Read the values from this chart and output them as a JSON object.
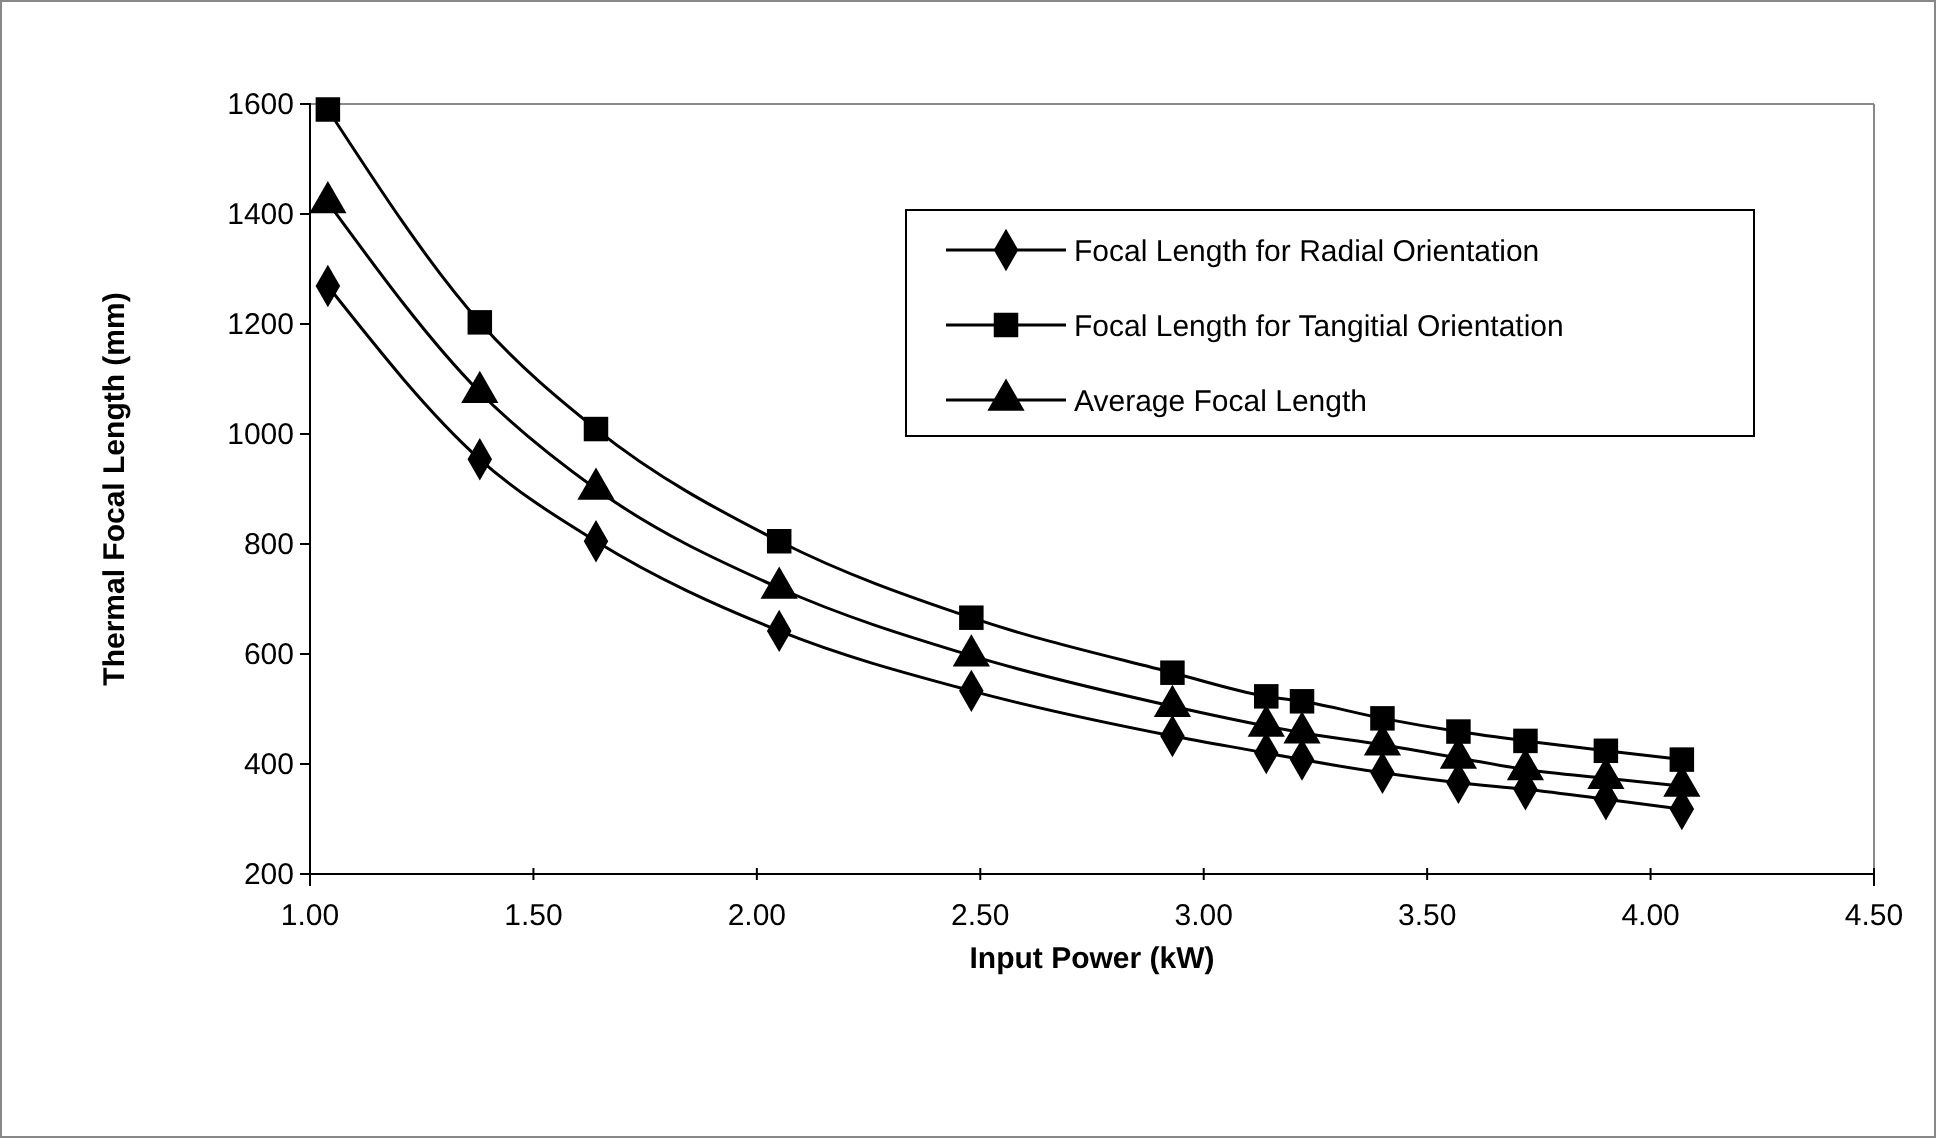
{
  "chart_data": {
    "type": "line",
    "xlabel": "Input Power (kW)",
    "ylabel": "Thermal Focal Length (mm)",
    "x": [
      1.04,
      1.38,
      1.64,
      2.05,
      2.48,
      2.93,
      3.14,
      3.22,
      3.4,
      3.57,
      3.72,
      3.9,
      4.07
    ],
    "series": [
      {
        "name": "Focal Length for Radial Orientation",
        "color": "#000000",
        "marker": "diamond",
        "values": [
          1269,
          954,
          805,
          642,
          533,
          451,
          420,
          408,
          384,
          366,
          354,
          336,
          318
        ]
      },
      {
        "name": "Focal Length for Tangitial Orientation",
        "color": "#000000",
        "marker": "square",
        "values": [
          1590,
          1203,
          1009,
          805,
          666,
          566,
          523,
          514,
          483,
          459,
          442,
          424,
          408
        ]
      },
      {
        "name": "Average Focal Length",
        "color": "#000000",
        "marker": "triangle",
        "values": [
          1421,
          1076,
          900,
          720,
          597,
          505,
          469,
          457,
          435,
          411,
          390,
          374,
          360
        ]
      }
    ],
    "xlim": [
      1.0,
      4.5
    ],
    "xticks": [
      {
        "value": 1,
        "label": "1.00"
      },
      {
        "value": 1.5,
        "label": "1.50"
      },
      {
        "value": 2,
        "label": "2.00"
      },
      {
        "value": 2.5,
        "label": "2.50"
      },
      {
        "value": 3,
        "label": "3.00"
      },
      {
        "value": 3.5,
        "label": "3.50"
      },
      {
        "value": 4,
        "label": "4.00"
      },
      {
        "value": 4.5,
        "label": "4.50"
      }
    ],
    "ylim": [
      200,
      1600
    ],
    "yticks": [
      200,
      400,
      600,
      800,
      1000,
      1200,
      1400,
      1600
    ],
    "grid": false,
    "legend": "top right",
    "line_style": "solid"
  }
}
